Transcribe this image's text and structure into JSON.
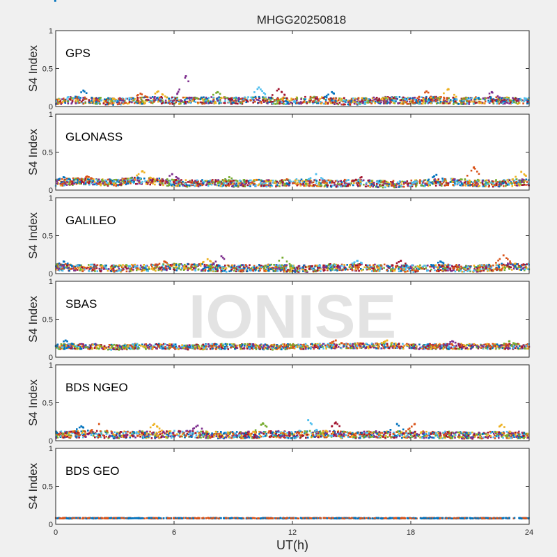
{
  "chart_data": {
    "type": "scatter",
    "title": "MHGG20250818",
    "watermark": "IONISE",
    "xlabel": "UT(h)",
    "ylabel": "S4 Index",
    "xlim": [
      0,
      24
    ],
    "ylim": [
      0,
      1
    ],
    "xticks": [
      0,
      6,
      12,
      18,
      24
    ],
    "yticks": [
      0,
      0.5,
      1
    ],
    "ytick_labels": [
      "0",
      "0.5",
      "1"
    ],
    "colors": [
      "#0072BD",
      "#D95319",
      "#EDB120",
      "#7E2F8E",
      "#77AC30",
      "#4DBEEE",
      "#A2142F"
    ],
    "panels": [
      {
        "label": "GPS",
        "baseline": [
          0.08,
          0.09,
          0.08,
          0.07,
          0.08,
          0.09,
          0.08,
          0.08,
          0.09,
          0.08,
          0.09,
          0.08,
          0.08,
          0.09,
          0.08,
          0.07,
          0.08,
          0.09,
          0.08,
          0.09,
          0.08,
          0.08,
          0.09,
          0.08,
          0.08
        ],
        "peaks": [
          {
            "x": 1.4,
            "y": 0.21
          },
          {
            "x": 4.3,
            "y": 0.17
          },
          {
            "x": 5.2,
            "y": 0.2
          },
          {
            "x": 6.6,
            "y": 0.4
          },
          {
            "x": 8.2,
            "y": 0.19
          },
          {
            "x": 10.3,
            "y": 0.25
          },
          {
            "x": 11.3,
            "y": 0.23
          },
          {
            "x": 14.0,
            "y": 0.19
          },
          {
            "x": 18.8,
            "y": 0.2
          },
          {
            "x": 19.9,
            "y": 0.23
          },
          {
            "x": 22.1,
            "y": 0.19
          }
        ]
      },
      {
        "label": "GLONASS",
        "baseline": [
          0.1,
          0.12,
          0.11,
          0.1,
          0.13,
          0.12,
          0.1,
          0.09,
          0.1,
          0.09,
          0.1,
          0.09,
          0.11,
          0.1,
          0.09,
          0.1,
          0.09,
          0.08,
          0.09,
          0.1,
          0.11,
          0.1,
          0.09,
          0.1,
          0.11
        ],
        "peaks": [
          {
            "x": 0.4,
            "y": 0.17
          },
          {
            "x": 1.6,
            "y": 0.18
          },
          {
            "x": 4.4,
            "y": 0.25
          },
          {
            "x": 5.9,
            "y": 0.21
          },
          {
            "x": 8.8,
            "y": 0.17
          },
          {
            "x": 13.2,
            "y": 0.21
          },
          {
            "x": 15.5,
            "y": 0.17
          },
          {
            "x": 19.3,
            "y": 0.2
          },
          {
            "x": 21.2,
            "y": 0.3
          },
          {
            "x": 23.6,
            "y": 0.24
          }
        ]
      },
      {
        "label": "GALILEO",
        "baseline": [
          0.09,
          0.08,
          0.08,
          0.07,
          0.08,
          0.08,
          0.09,
          0.09,
          0.08,
          0.07,
          0.08,
          0.08,
          0.07,
          0.07,
          0.09,
          0.09,
          0.08,
          0.08,
          0.07,
          0.08,
          0.08,
          0.07,
          0.08,
          0.1,
          0.09
        ],
        "peaks": [
          {
            "x": 0.4,
            "y": 0.16
          },
          {
            "x": 5.5,
            "y": 0.16
          },
          {
            "x": 7.7,
            "y": 0.19
          },
          {
            "x": 8.4,
            "y": 0.23
          },
          {
            "x": 11.5,
            "y": 0.21
          },
          {
            "x": 15.3,
            "y": 0.17
          },
          {
            "x": 17.5,
            "y": 0.17
          },
          {
            "x": 19.5,
            "y": 0.16
          },
          {
            "x": 22.7,
            "y": 0.24
          }
        ]
      },
      {
        "label": "SBAS",
        "baseline": [
          0.14,
          0.14,
          0.14,
          0.13,
          0.14,
          0.14,
          0.14,
          0.13,
          0.14,
          0.14,
          0.14,
          0.13,
          0.14,
          0.14,
          0.15,
          0.15,
          0.15,
          0.15,
          0.14,
          0.14,
          0.14,
          0.14,
          0.14,
          0.14,
          0.14
        ],
        "peaks": [
          {
            "x": 0.5,
            "y": 0.22
          },
          {
            "x": 14.2,
            "y": 0.22
          },
          {
            "x": 16.8,
            "y": 0.22
          },
          {
            "x": 20.1,
            "y": 0.21
          },
          {
            "x": 23.0,
            "y": 0.21
          }
        ]
      },
      {
        "label": "BDS NGEO",
        "baseline": [
          0.08,
          0.09,
          0.09,
          0.08,
          0.09,
          0.08,
          0.09,
          0.09,
          0.08,
          0.08,
          0.08,
          0.09,
          0.08,
          0.09,
          0.09,
          0.08,
          0.09,
          0.08,
          0.09,
          0.08,
          0.08,
          0.07,
          0.08,
          0.08,
          0.08
        ],
        "peaks": [
          {
            "x": 1.3,
            "y": 0.19
          },
          {
            "x": 2.2,
            "y": 0.22
          },
          {
            "x": 5.0,
            "y": 0.22
          },
          {
            "x": 7.2,
            "y": 0.2
          },
          {
            "x": 10.5,
            "y": 0.23
          },
          {
            "x": 12.8,
            "y": 0.27
          },
          {
            "x": 14.2,
            "y": 0.24
          },
          {
            "x": 17.3,
            "y": 0.22
          },
          {
            "x": 18.2,
            "y": 0.22
          },
          {
            "x": 22.6,
            "y": 0.21
          }
        ]
      },
      {
        "label": "BDS GEO",
        "baseline": [
          0.08,
          0.08,
          0.08,
          0.08,
          0.08,
          0.08,
          0.08,
          0.08,
          0.08,
          0.08,
          0.08,
          0.08,
          0.08,
          0.08,
          0.08,
          0.08,
          0.08,
          0.08,
          0.08,
          0.08,
          0.08,
          0.08,
          0.08,
          0.08,
          0.08
        ],
        "peaks": []
      }
    ]
  }
}
